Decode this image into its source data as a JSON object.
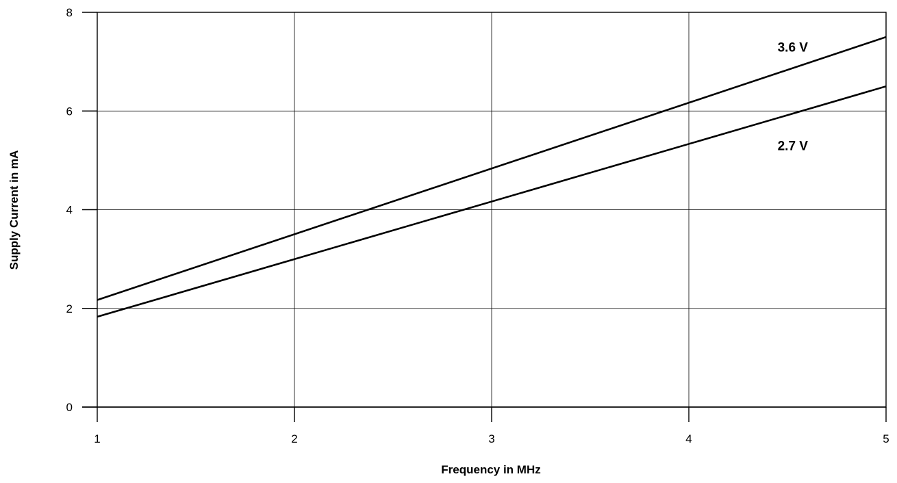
{
  "chart_data": {
    "type": "line",
    "xlabel": "Frequency in MHz",
    "ylabel": "Supply Current in mA",
    "xlim": [
      1,
      5
    ],
    "ylim": [
      0,
      8
    ],
    "xticks": [
      1,
      2,
      3,
      4,
      5
    ],
    "yticks": [
      0,
      2,
      4,
      6,
      8
    ],
    "grid": true,
    "series": [
      {
        "name": "3.6 V",
        "x": [
          1,
          5
        ],
        "y": [
          2.17,
          7.5
        ],
        "label_at": [
          4.45,
          7.3
        ]
      },
      {
        "name": "2.7 V",
        "x": [
          1,
          5
        ],
        "y": [
          1.83,
          6.5
        ],
        "label_at": [
          4.45,
          5.3
        ]
      }
    ]
  }
}
